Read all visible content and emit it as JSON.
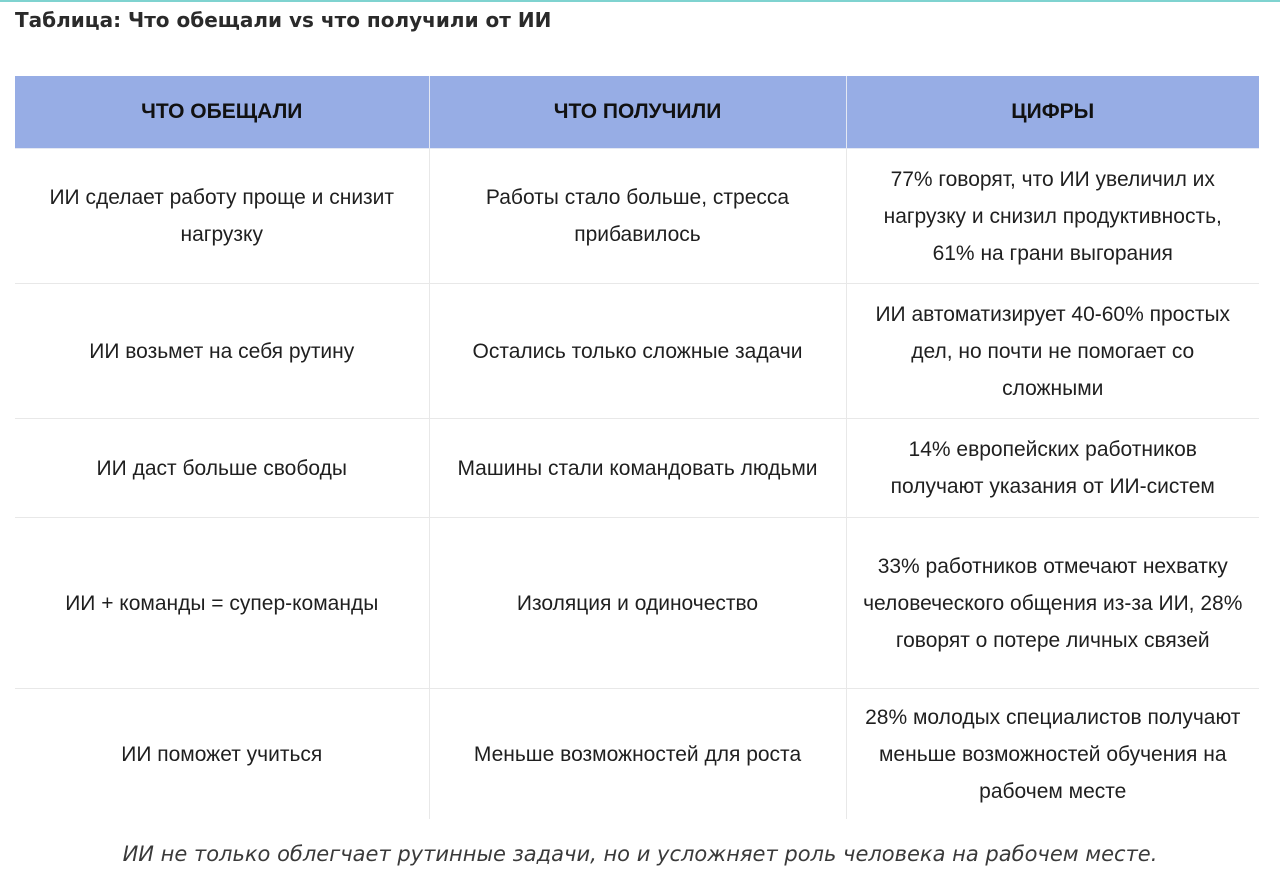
{
  "title": "Таблица: Что обещали vs что получили от ИИ",
  "table": {
    "headers": [
      "ЧТО ОБЕЩАЛИ",
      "ЧТО ПОЛУЧИЛИ",
      "ЦИФРЫ"
    ],
    "rows": [
      {
        "promised": "ИИ сделает работу проще и снизит нагрузку",
        "got": "Работы стало больше, стресса прибавилось",
        "figures": "77% говорят, что ИИ увеличил их нагрузку и снизил продуктивность, 61% на грани выгорания"
      },
      {
        "promised": "ИИ возьмет на себя рутину",
        "got": "Остались только сложные задачи",
        "figures": "ИИ автоматизирует 40-60% простых дел, но почти не помогает со сложными"
      },
      {
        "promised": "ИИ даст больше свободы",
        "got": "Машины стали командовать людьми",
        "figures": "14% европейских работников получают указания от ИИ-систем"
      },
      {
        "promised": "ИИ + команды = супер-команды",
        "got": "Изоляция и одиночество",
        "figures": "33% работников отмечают нехватку человеческого общения из-за ИИ, 28% говорят о потере личных связей"
      },
      {
        "promised": "ИИ поможет учиться",
        "got": "Меньше возможностей для роста",
        "figures": "28% молодых специалистов получают меньше возможностей обучения на рабочем месте"
      }
    ]
  },
  "caption": "ИИ не только облегчает рутинные задачи, но и усложняет роль человека на рабочем месте.",
  "colors": {
    "header_background": "#97ade5",
    "top_rule": "#7fd3d0"
  }
}
